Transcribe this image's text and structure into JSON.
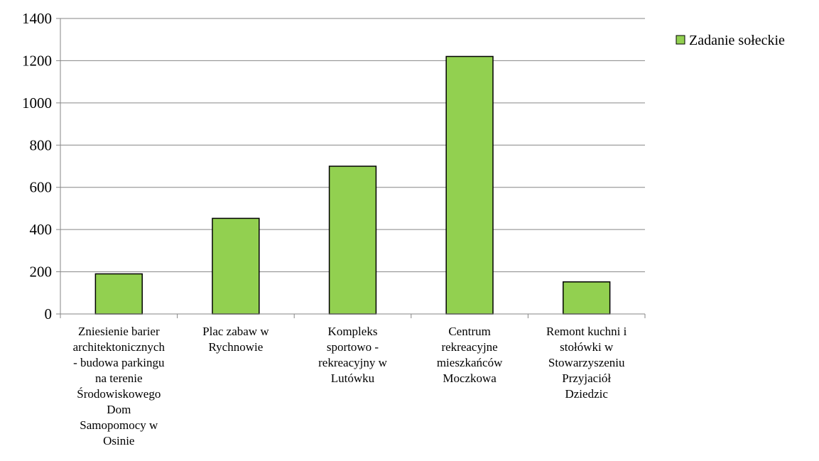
{
  "chart_data": {
    "type": "bar",
    "title": "",
    "xlabel": "",
    "ylabel": "",
    "ylim": [
      0,
      1400
    ],
    "yticks": [
      0,
      200,
      400,
      600,
      800,
      1000,
      1200,
      1400
    ],
    "grid": true,
    "legend_position": "top-right",
    "categories": [
      [
        "Zniesienie barier",
        "architektonicznych",
        "- budowa parkingu",
        "na terenie",
        "Środowiskowego",
        "Dom",
        "Samopomocy w",
        "Osinie"
      ],
      [
        "Plac zabaw w",
        "Rychnowie"
      ],
      [
        "Kompleks",
        "sportowo -",
        "rekreacyjny w",
        "Lutówku"
      ],
      [
        "Centrum",
        "rekreacyjne",
        "mieszkańców",
        "Moczkowa"
      ],
      [
        "Remont kuchni i",
        "stołówki w",
        "Stowarzyszeniu",
        "Przyjaciół",
        "Dziedzic"
      ]
    ],
    "series": [
      {
        "name": "Zadanie sołeckie",
        "color": "#92d050",
        "values": [
          190,
          453,
          700,
          1220,
          152
        ]
      }
    ]
  }
}
